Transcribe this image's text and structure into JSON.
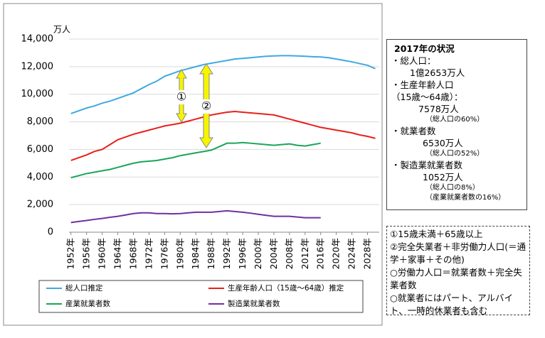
{
  "chart_data": {
    "type": "line",
    "unit": "万人",
    "x": [
      1952,
      1954,
      1956,
      1958,
      1960,
      1962,
      1964,
      1966,
      1968,
      1970,
      1972,
      1974,
      1976,
      1978,
      1980,
      1982,
      1984,
      1986,
      1988,
      1990,
      1992,
      1994,
      1996,
      1998,
      2000,
      2002,
      2004,
      2006,
      2008,
      2010,
      2012,
      2014,
      2016,
      2018,
      2020,
      2022,
      2024,
      2026,
      2028,
      2030
    ],
    "series": [
      {
        "name": "総人口推定",
        "color": "#3fa9e0",
        "values": [
          8600,
          8800,
          9000,
          9150,
          9350,
          9500,
          9700,
          9900,
          10100,
          10400,
          10700,
          10950,
          11300,
          11500,
          11700,
          11850,
          12000,
          12150,
          12250,
          12350,
          12450,
          12550,
          12600,
          12650,
          12700,
          12750,
          12780,
          12800,
          12800,
          12780,
          12750,
          12720,
          12700,
          12650,
          12550,
          12450,
          12350,
          12220,
          12100,
          11850
        ]
      },
      {
        "name": "生産年齢人口（15歳～64歳）推定",
        "color": "#e8201c",
        "values": [
          5200,
          5400,
          5600,
          5850,
          6000,
          6350,
          6700,
          6900,
          7100,
          7250,
          7400,
          7550,
          7700,
          7800,
          7900,
          8050,
          8200,
          8350,
          8500,
          8600,
          8700,
          8750,
          8700,
          8650,
          8600,
          8550,
          8500,
          8350,
          8200,
          8050,
          7900,
          7750,
          7600,
          7500,
          7400,
          7300,
          7200,
          7050,
          6950,
          6800
        ]
      },
      {
        "name": "産業就業者数",
        "color": "#1aa55a",
        "values": [
          3950,
          4100,
          4250,
          4350,
          4450,
          4550,
          4700,
          4850,
          5000,
          5100,
          5150,
          5200,
          5300,
          5400,
          5550,
          5650,
          5750,
          5850,
          5950,
          6200,
          6450,
          6450,
          6500,
          6450,
          6400,
          6350,
          6300,
          6350,
          6400,
          6300,
          6250,
          6350,
          6450,
          null,
          null,
          null,
          null,
          null,
          null,
          null
        ]
      },
      {
        "name": "製造業就業者数",
        "color": "#7030a0",
        "values": [
          700,
          780,
          850,
          930,
          1000,
          1080,
          1150,
          1250,
          1350,
          1400,
          1400,
          1350,
          1350,
          1330,
          1350,
          1400,
          1450,
          1450,
          1450,
          1500,
          1550,
          1500,
          1450,
          1380,
          1300,
          1220,
          1150,
          1150,
          1150,
          1100,
          1050,
          1050,
          1050,
          null,
          null,
          null,
          null,
          null,
          null,
          null
        ]
      }
    ],
    "xlim": [
      1951.5,
      2031
    ],
    "xticks": [
      1952,
      1956,
      1960,
      1964,
      1968,
      1972,
      1976,
      1980,
      1984,
      1988,
      1992,
      1996,
      2000,
      2004,
      2008,
      2012,
      2016,
      2020,
      2024,
      2028
    ],
    "xtick_suffix": "年",
    "ylim": [
      0,
      14000
    ],
    "yticks": [
      0,
      {
        "value": 2000,
        "label": "2,000"
      },
      {
        "value": 4000,
        "label": "4,000"
      },
      {
        "value": 6000,
        "label": "6,000"
      },
      {
        "value": 8000,
        "label": "8,000"
      },
      {
        "value": 10000,
        "label": "10,000"
      },
      {
        "value": 12000,
        "label": "12,000"
      },
      {
        "value": 14000,
        "label": "14,000"
      }
    ],
    "grid": true,
    "annotations": [
      "①",
      "②"
    ]
  },
  "status_box": {
    "title": "2017年の状況",
    "lines": [
      "・総人口：",
      "1億2653万人",
      "・生産年齢人口",
      "（15歳～64歳）：",
      "7578万人",
      "（総人口の60%）",
      "・就業者数",
      "6530万人",
      "（総人口の52%）",
      "・製造業就業者数",
      "1052万人",
      "（総人口の8%）",
      "（産業就業者数の16%）"
    ]
  },
  "notes_box": {
    "lines": [
      "①15歳未満＋65歳以上",
      "②完全失業者＋非労働力人口(＝通学＋家事＋その他)",
      "○労働力人口＝就業者数＋完全失業者数",
      "○就業者にはパート、アルバイト、一時的休業者も含む"
    ]
  }
}
